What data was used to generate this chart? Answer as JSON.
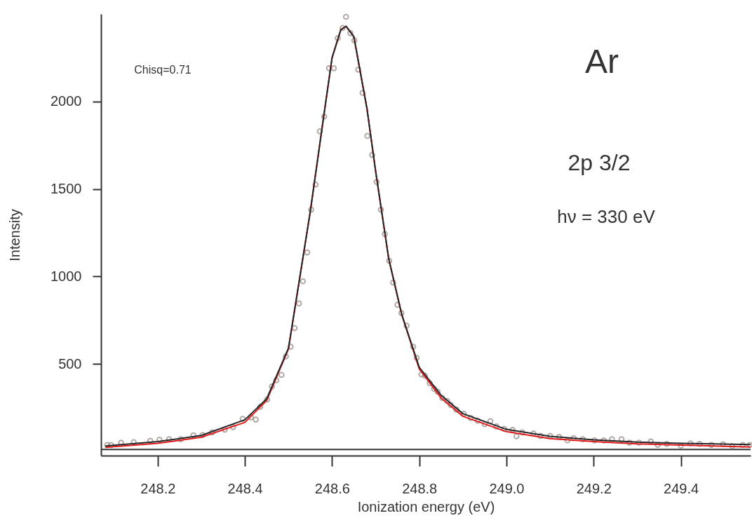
{
  "chart_data": {
    "type": "scatter",
    "xlabel": "Ionization energy (eV)",
    "ylabel": "Intensity",
    "annotations": [
      "Ar",
      "2p 3/2",
      "hν = 330 eV",
      "Chisq=0.71"
    ],
    "xlim": [
      248.07,
      249.56
    ],
    "ylim": [
      -25,
      2500
    ],
    "xticks": [
      248.2,
      248.4,
      248.6,
      248.8,
      {
        "value": 249,
        "label": "249.0"
      },
      249.2,
      249.4
    ],
    "yticks": [
      500,
      1000,
      1500,
      2000
    ],
    "ref_lines": [
      {
        "axis": "y",
        "value": 10,
        "color": "#333333"
      }
    ],
    "series": [
      {
        "marker": "circle",
        "color": "#948682",
        "x": [
          248.084,
          248.093,
          248.116,
          248.145,
          248.183,
          248.204,
          248.226,
          248.253,
          248.282,
          248.303,
          248.325,
          248.354,
          248.373,
          248.395,
          248.414,
          248.425,
          248.435,
          248.451,
          248.462,
          248.472,
          248.484,
          248.494,
          248.505,
          248.514,
          248.524,
          248.533,
          248.543,
          248.552,
          248.562,
          248.572,
          248.582,
          248.593,
          248.604,
          248.613,
          248.624,
          248.632,
          248.642,
          248.651,
          248.66,
          248.67,
          248.681,
          248.692,
          248.702,
          248.712,
          248.721,
          248.731,
          248.74,
          248.75,
          248.759,
          248.771,
          248.786,
          248.794,
          248.805,
          248.813,
          248.824,
          248.834,
          248.842,
          248.853,
          248.864,
          248.872,
          248.885,
          248.902,
          248.918,
          248.934,
          248.95,
          248.963,
          248.977,
          248.995,
          249.014,
          249.023,
          249.036,
          249.062,
          249.078,
          249.1,
          249.121,
          249.14,
          249.154,
          249.175,
          249.202,
          249.223,
          249.242,
          249.264,
          249.282,
          249.304,
          249.331,
          249.347,
          249.368,
          249.4,
          249.422,
          249.443,
          249.47,
          249.497,
          249.518,
          249.542,
          249.558
        ],
        "values": [
          36,
          36,
          49,
          52,
          60,
          66,
          69,
          69,
          91,
          93,
          108,
          124,
          138,
          185,
          194,
          181,
          254,
          296,
          370,
          406,
          436,
          542,
          598,
          704,
          845,
          972,
          1137,
          1381,
          1525,
          1829,
          1914,
          2190,
          2190,
          2362,
          2420,
          2484,
          2390,
          2349,
          2182,
          2049,
          1803,
          1694,
          1540,
          1381,
          1242,
          1089,
          964,
          837,
          790,
          718,
          598,
          534,
          439,
          432,
          389,
          357,
          340,
          304,
          287,
          265,
          238,
          214,
          190,
          175,
          155,
          172,
          142,
          128,
          122,
          86,
          108,
          102,
          88,
          88,
          82,
          62,
          75,
          69,
          62,
          62,
          69,
          69,
          49,
          49,
          56,
          36,
          42,
          32,
          45,
          42,
          36,
          40,
          29,
          36,
          36
        ]
      },
      {
        "type": "line",
        "color": "#e31a1c",
        "x": [
          248.08,
          248.2,
          248.3,
          248.4,
          248.45,
          248.5,
          248.55,
          248.58,
          248.6,
          248.62,
          248.632,
          248.65,
          248.68,
          248.7,
          248.73,
          248.76,
          248.8,
          248.85,
          248.9,
          249.0,
          249.1,
          249.2,
          249.3,
          249.4,
          249.56
        ],
        "values": [
          22,
          45,
          80,
          165,
          290,
          585,
          1370,
          1900,
          2250,
          2410,
          2430,
          2370,
          1960,
          1600,
          1100,
          780,
          470,
          305,
          200,
          112,
          72,
          55,
          42,
          35,
          24
        ]
      },
      {
        "type": "line",
        "color": "#262626",
        "x": [
          248.08,
          248.2,
          248.3,
          248.4,
          248.45,
          248.5,
          248.55,
          248.58,
          248.6,
          248.62,
          248.632,
          248.65,
          248.68,
          248.7,
          248.73,
          248.76,
          248.8,
          248.85,
          248.9,
          249.0,
          249.1,
          249.2,
          249.3,
          249.4,
          249.56
        ],
        "values": [
          30,
          55,
          90,
          180,
          300,
          590,
          1370,
          1900,
          2250,
          2410,
          2430,
          2370,
          1960,
          1600,
          1100,
          780,
          480,
          320,
          215,
          125,
          85,
          65,
          52,
          45,
          38
        ]
      }
    ]
  }
}
